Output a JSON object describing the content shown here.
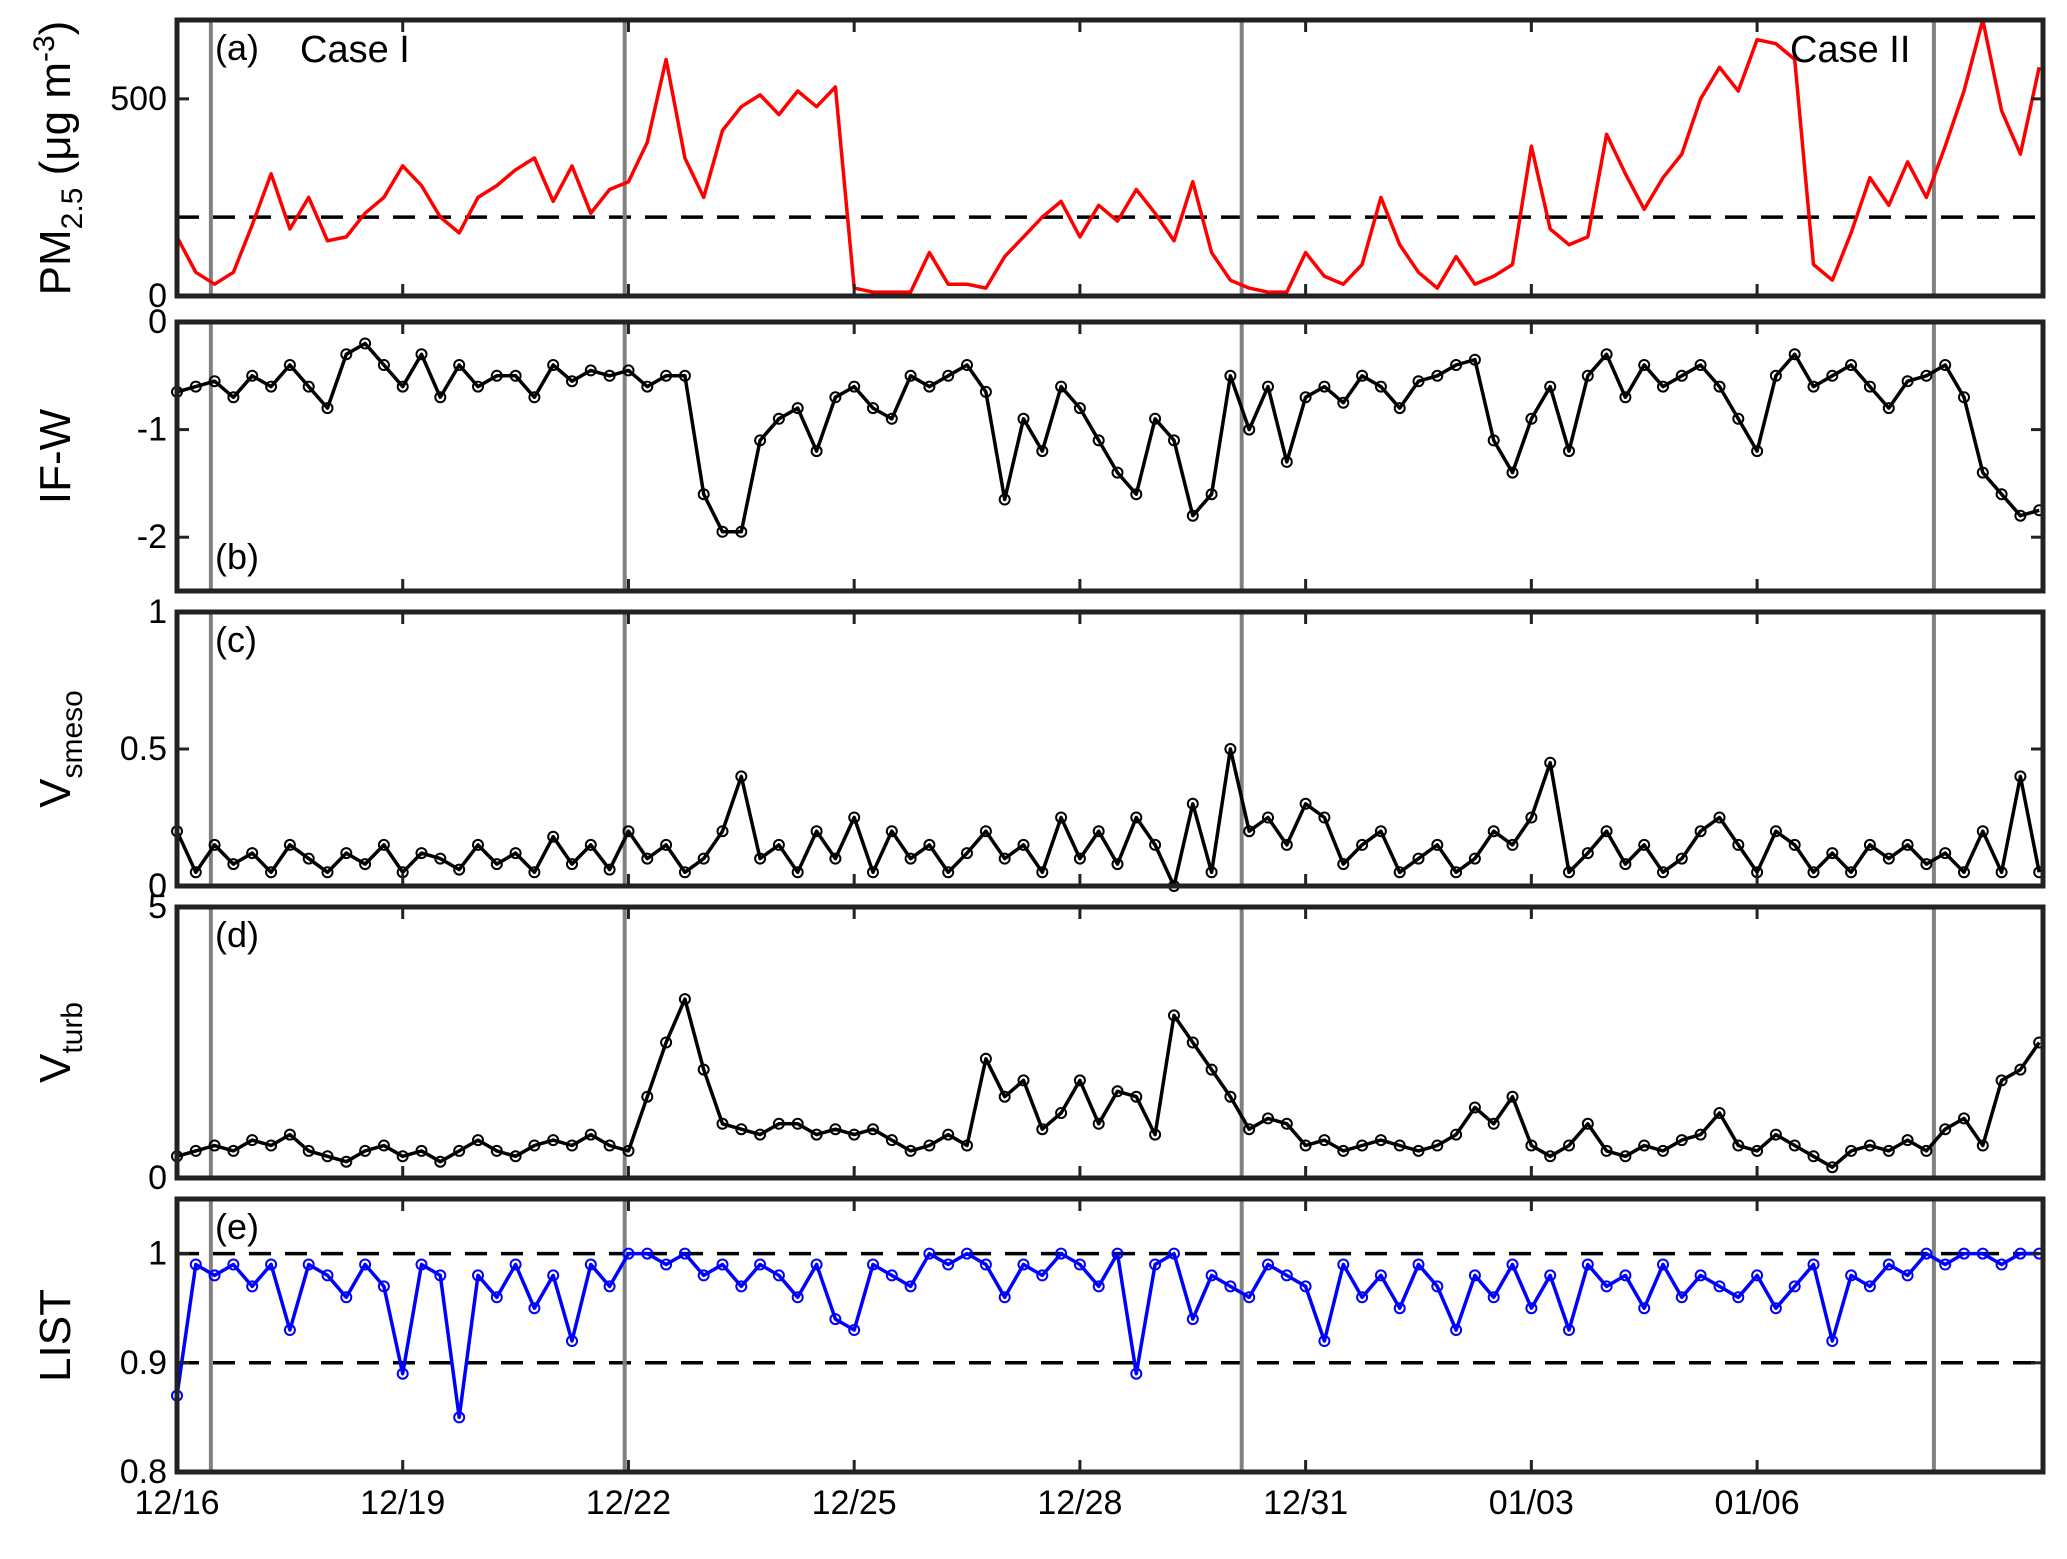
{
  "chart_data": [
    {
      "type": "line",
      "panel_label": "(a)",
      "case_labels": [
        "Case I",
        "Case II"
      ],
      "ylabel_main": "PM",
      "ylabel_sub": "2.5",
      "ylabel_unit": " (μg m",
      "ylabel_exp": "-3",
      "ylabel_close": ")",
      "ylim": [
        0,
        700
      ],
      "yticks": [
        0,
        500
      ],
      "line_color": "#ff0000",
      "reference_line": 200,
      "x": [
        0.0,
        0.25,
        0.5,
        0.75,
        1.0,
        1.25,
        1.5,
        1.75,
        2.0,
        2.25,
        2.5,
        2.75,
        3.0,
        3.25,
        3.5,
        3.75,
        4.0,
        4.25,
        4.5,
        4.75,
        5.0,
        5.25,
        5.5,
        5.75,
        6.0,
        6.25,
        6.5,
        6.75,
        7.0,
        7.25,
        7.5,
        7.75,
        8.0,
        8.25,
        8.5,
        8.75,
        9.0,
        9.25,
        9.5,
        9.75,
        10.0,
        10.25,
        10.5,
        10.75,
        11.0,
        11.25,
        11.5,
        11.75,
        12.0,
        12.25,
        12.5,
        12.75,
        13.0,
        13.25,
        13.5,
        13.75,
        14.0,
        14.25,
        14.5,
        14.75,
        15.0,
        15.25,
        15.5,
        15.75,
        16.0,
        16.25,
        16.5,
        16.75,
        17.0,
        17.25,
        17.5,
        17.75,
        18.0,
        18.25,
        18.5,
        18.75,
        19.0,
        19.25,
        19.5,
        19.75,
        20.0,
        20.25,
        20.5,
        20.75,
        21.0,
        21.25,
        21.5,
        21.75,
        22.0,
        22.25,
        22.5,
        22.75,
        23.0,
        23.25,
        23.5,
        23.75,
        24.0,
        24.25,
        24.5,
        24.75
      ],
      "values": [
        150,
        60,
        30,
        60,
        180,
        310,
        170,
        250,
        140,
        150,
        210,
        250,
        330,
        280,
        200,
        160,
        250,
        280,
        320,
        350,
        240,
        330,
        210,
        270,
        290,
        390,
        600,
        350,
        250,
        420,
        480,
        510,
        460,
        520,
        480,
        530,
        20,
        10,
        10,
        10,
        110,
        30,
        30,
        20,
        100,
        150,
        200,
        240,
        150,
        230,
        190,
        270,
        210,
        140,
        290,
        110,
        40,
        20,
        10,
        10,
        110,
        50,
        30,
        80,
        250,
        130,
        60,
        20,
        100,
        30,
        50,
        80,
        380,
        170,
        130,
        150,
        410,
        310,
        220,
        300,
        360,
        500,
        580,
        520,
        650,
        640,
        600,
        80,
        40,
        160,
        300,
        230,
        340,
        250,
        380,
        520,
        700,
        470,
        360,
        580
      ]
    },
    {
      "type": "scatter-line",
      "panel_label": "(b)",
      "ylabel_main": "IF-W",
      "ylim": [
        -2.5,
        0
      ],
      "yticks": [
        -2,
        -1,
        0
      ],
      "line_color": "#000000",
      "x": [
        0.0,
        0.25,
        0.5,
        0.75,
        1.0,
        1.25,
        1.5,
        1.75,
        2.0,
        2.25,
        2.5,
        2.75,
        3.0,
        3.25,
        3.5,
        3.75,
        4.0,
        4.25,
        4.5,
        4.75,
        5.0,
        5.25,
        5.5,
        5.75,
        6.0,
        6.25,
        6.5,
        6.75,
        7.0,
        7.25,
        7.5,
        7.75,
        8.0,
        8.25,
        8.5,
        8.75,
        9.0,
        9.25,
        9.5,
        9.75,
        10.0,
        10.25,
        10.5,
        10.75,
        11.0,
        11.25,
        11.5,
        11.75,
        12.0,
        12.25,
        12.5,
        12.75,
        13.0,
        13.25,
        13.5,
        13.75,
        14.0,
        14.25,
        14.5,
        14.75,
        15.0,
        15.25,
        15.5,
        15.75,
        16.0,
        16.25,
        16.5,
        16.75,
        17.0,
        17.25,
        17.5,
        17.75,
        18.0,
        18.25,
        18.5,
        18.75,
        19.0,
        19.25,
        19.5,
        19.75,
        20.0,
        20.25,
        20.5,
        20.75,
        21.0,
        21.25,
        21.5,
        21.75,
        22.0,
        22.25,
        22.5,
        22.75,
        23.0,
        23.25,
        23.5,
        23.75,
        24.0,
        24.25,
        24.5,
        24.75
      ],
      "values": [
        -0.65,
        -0.6,
        -0.55,
        -0.7,
        -0.5,
        -0.6,
        -0.4,
        -0.6,
        -0.8,
        -0.3,
        -0.2,
        -0.4,
        -0.6,
        -0.3,
        -0.7,
        -0.4,
        -0.6,
        -0.5,
        -0.5,
        -0.7,
        -0.4,
        -0.55,
        -0.45,
        -0.5,
        -0.45,
        -0.6,
        -0.5,
        -0.5,
        -1.6,
        -1.95,
        -1.95,
        -1.1,
        -0.9,
        -0.8,
        -1.2,
        -0.7,
        -0.6,
        -0.8,
        -0.9,
        -0.5,
        -0.6,
        -0.5,
        -0.4,
        -0.65,
        -1.65,
        -0.9,
        -1.2,
        -0.6,
        -0.8,
        -1.1,
        -1.4,
        -1.6,
        -0.9,
        -1.1,
        -1.8,
        -1.6,
        -0.5,
        -1.0,
        -0.6,
        -1.3,
        -0.7,
        -0.6,
        -0.75,
        -0.5,
        -0.6,
        -0.8,
        -0.55,
        -0.5,
        -0.4,
        -0.35,
        -1.1,
        -1.4,
        -0.9,
        -0.6,
        -1.2,
        -0.5,
        -0.3,
        -0.7,
        -0.4,
        -0.6,
        -0.5,
        -0.4,
        -0.6,
        -0.9,
        -1.2,
        -0.5,
        -0.3,
        -0.6,
        -0.5,
        -0.4,
        -0.6,
        -0.8,
        -0.55,
        -0.5,
        -0.4,
        -0.7,
        -1.4,
        -1.6,
        -1.8,
        -1.75
      ]
    },
    {
      "type": "scatter-line",
      "panel_label": "(c)",
      "ylabel_main": "V",
      "ylabel_sub": "smeso",
      "ylim": [
        0,
        1
      ],
      "yticks": [
        0,
        0.5,
        1
      ],
      "line_color": "#000000",
      "x": [
        0.0,
        0.25,
        0.5,
        0.75,
        1.0,
        1.25,
        1.5,
        1.75,
        2.0,
        2.25,
        2.5,
        2.75,
        3.0,
        3.25,
        3.5,
        3.75,
        4.0,
        4.25,
        4.5,
        4.75,
        5.0,
        5.25,
        5.5,
        5.75,
        6.0,
        6.25,
        6.5,
        6.75,
        7.0,
        7.25,
        7.5,
        7.75,
        8.0,
        8.25,
        8.5,
        8.75,
        9.0,
        9.25,
        9.5,
        9.75,
        10.0,
        10.25,
        10.5,
        10.75,
        11.0,
        11.25,
        11.5,
        11.75,
        12.0,
        12.25,
        12.5,
        12.75,
        13.0,
        13.25,
        13.5,
        13.75,
        14.0,
        14.25,
        14.5,
        14.75,
        15.0,
        15.25,
        15.5,
        15.75,
        16.0,
        16.25,
        16.5,
        16.75,
        17.0,
        17.25,
        17.5,
        17.75,
        18.0,
        18.25,
        18.5,
        18.75,
        19.0,
        19.25,
        19.5,
        19.75,
        20.0,
        20.25,
        20.5,
        20.75,
        21.0,
        21.25,
        21.5,
        21.75,
        22.0,
        22.25,
        22.5,
        22.75,
        23.0,
        23.25,
        23.5,
        23.75,
        24.0,
        24.25,
        24.5,
        24.75
      ],
      "values": [
        0.2,
        0.05,
        0.15,
        0.08,
        0.12,
        0.05,
        0.15,
        0.1,
        0.05,
        0.12,
        0.08,
        0.15,
        0.05,
        0.12,
        0.1,
        0.06,
        0.15,
        0.08,
        0.12,
        0.05,
        0.18,
        0.08,
        0.15,
        0.06,
        0.2,
        0.1,
        0.15,
        0.05,
        0.1,
        0.2,
        0.4,
        0.1,
        0.15,
        0.05,
        0.2,
        0.1,
        0.25,
        0.05,
        0.2,
        0.1,
        0.15,
        0.05,
        0.12,
        0.2,
        0.1,
        0.15,
        0.05,
        0.25,
        0.1,
        0.2,
        0.08,
        0.25,
        0.15,
        0.0,
        0.3,
        0.05,
        0.5,
        0.2,
        0.25,
        0.15,
        0.3,
        0.25,
        0.08,
        0.15,
        0.2,
        0.05,
        0.1,
        0.15,
        0.05,
        0.1,
        0.2,
        0.15,
        0.25,
        0.45,
        0.05,
        0.12,
        0.2,
        0.08,
        0.15,
        0.05,
        0.1,
        0.2,
        0.25,
        0.15,
        0.05,
        0.2,
        0.15,
        0.05,
        0.12,
        0.05,
        0.15,
        0.1,
        0.15,
        0.08,
        0.12,
        0.05,
        0.2,
        0.05,
        0.4,
        0.05
      ]
    },
    {
      "type": "scatter-line",
      "panel_label": "(d)",
      "ylabel_main": "V",
      "ylabel_sub": "turb",
      "ylim": [
        0,
        5
      ],
      "yticks": [
        0,
        5
      ],
      "line_color": "#000000",
      "x": [
        0.0,
        0.25,
        0.5,
        0.75,
        1.0,
        1.25,
        1.5,
        1.75,
        2.0,
        2.25,
        2.5,
        2.75,
        3.0,
        3.25,
        3.5,
        3.75,
        4.0,
        4.25,
        4.5,
        4.75,
        5.0,
        5.25,
        5.5,
        5.75,
        6.0,
        6.25,
        6.5,
        6.75,
        7.0,
        7.25,
        7.5,
        7.75,
        8.0,
        8.25,
        8.5,
        8.75,
        9.0,
        9.25,
        9.5,
        9.75,
        10.0,
        10.25,
        10.5,
        10.75,
        11.0,
        11.25,
        11.5,
        11.75,
        12.0,
        12.25,
        12.5,
        12.75,
        13.0,
        13.25,
        13.5,
        13.75,
        14.0,
        14.25,
        14.5,
        14.75,
        15.0,
        15.25,
        15.5,
        15.75,
        16.0,
        16.25,
        16.5,
        16.75,
        17.0,
        17.25,
        17.5,
        17.75,
        18.0,
        18.25,
        18.5,
        18.75,
        19.0,
        19.25,
        19.5,
        19.75,
        20.0,
        20.25,
        20.5,
        20.75,
        21.0,
        21.25,
        21.5,
        21.75,
        22.0,
        22.25,
        22.5,
        22.75,
        23.0,
        23.25,
        23.5,
        23.75,
        24.0,
        24.25,
        24.5,
        24.75
      ],
      "values": [
        0.4,
        0.5,
        0.6,
        0.5,
        0.7,
        0.6,
        0.8,
        0.5,
        0.4,
        0.3,
        0.5,
        0.6,
        0.4,
        0.5,
        0.3,
        0.5,
        0.7,
        0.5,
        0.4,
        0.6,
        0.7,
        0.6,
        0.8,
        0.6,
        0.5,
        1.5,
        2.5,
        3.3,
        2.0,
        1.0,
        0.9,
        0.8,
        1.0,
        1.0,
        0.8,
        0.9,
        0.8,
        0.9,
        0.7,
        0.5,
        0.6,
        0.8,
        0.6,
        2.2,
        1.5,
        1.8,
        0.9,
        1.2,
        1.8,
        1.0,
        1.6,
        1.5,
        0.8,
        3.0,
        2.5,
        2.0,
        1.5,
        0.9,
        1.1,
        1.0,
        0.6,
        0.7,
        0.5,
        0.6,
        0.7,
        0.6,
        0.5,
        0.6,
        0.8,
        1.3,
        1.0,
        1.5,
        0.6,
        0.4,
        0.6,
        1.0,
        0.5,
        0.4,
        0.6,
        0.5,
        0.7,
        0.8,
        1.2,
        0.6,
        0.5,
        0.8,
        0.6,
        0.4,
        0.2,
        0.5,
        0.6,
        0.5,
        0.7,
        0.5,
        0.9,
        1.1,
        0.6,
        1.8,
        2.0,
        2.5
      ]
    },
    {
      "type": "scatter-line",
      "panel_label": "(e)",
      "ylabel_main": "LIST",
      "ylim": [
        0.8,
        1.05
      ],
      "yticks": [
        0.8,
        0.9,
        1.0
      ],
      "ytick_labels": [
        "0.8",
        "0.9",
        "1"
      ],
      "line_color": "#0000ff",
      "reference_lines": [
        1.0,
        0.9
      ],
      "x": [
        0.0,
        0.25,
        0.5,
        0.75,
        1.0,
        1.25,
        1.5,
        1.75,
        2.0,
        2.25,
        2.5,
        2.75,
        3.0,
        3.25,
        3.5,
        3.75,
        4.0,
        4.25,
        4.5,
        4.75,
        5.0,
        5.25,
        5.5,
        5.75,
        6.0,
        6.25,
        6.5,
        6.75,
        7.0,
        7.25,
        7.5,
        7.75,
        8.0,
        8.25,
        8.5,
        8.75,
        9.0,
        9.25,
        9.5,
        9.75,
        10.0,
        10.25,
        10.5,
        10.75,
        11.0,
        11.25,
        11.5,
        11.75,
        12.0,
        12.25,
        12.5,
        12.75,
        13.0,
        13.25,
        13.5,
        13.75,
        14.0,
        14.25,
        14.5,
        14.75,
        15.0,
        15.25,
        15.5,
        15.75,
        16.0,
        16.25,
        16.5,
        16.75,
        17.0,
        17.25,
        17.5,
        17.75,
        18.0,
        18.25,
        18.5,
        18.75,
        19.0,
        19.25,
        19.5,
        19.75,
        20.0,
        20.25,
        20.5,
        20.75,
        21.0,
        21.25,
        21.5,
        21.75,
        22.0,
        22.25,
        22.5,
        22.75,
        23.0,
        23.25,
        23.5,
        23.75,
        24.0,
        24.25,
        24.5,
        24.75
      ],
      "values": [
        0.87,
        0.99,
        0.98,
        0.99,
        0.97,
        0.99,
        0.93,
        0.99,
        0.98,
        0.96,
        0.99,
        0.97,
        0.89,
        0.99,
        0.98,
        0.85,
        0.98,
        0.96,
        0.99,
        0.95,
        0.98,
        0.92,
        0.99,
        0.97,
        1.0,
        1.0,
        0.99,
        1.0,
        0.98,
        0.99,
        0.97,
        0.99,
        0.98,
        0.96,
        0.99,
        0.94,
        0.93,
        0.99,
        0.98,
        0.97,
        1.0,
        0.99,
        1.0,
        0.99,
        0.96,
        0.99,
        0.98,
        1.0,
        0.99,
        0.97,
        1.0,
        0.89,
        0.99,
        1.0,
        0.94,
        0.98,
        0.97,
        0.96,
        0.99,
        0.98,
        0.97,
        0.92,
        0.99,
        0.96,
        0.98,
        0.95,
        0.99,
        0.97,
        0.93,
        0.98,
        0.96,
        0.99,
        0.95,
        0.98,
        0.93,
        0.99,
        0.97,
        0.98,
        0.95,
        0.99,
        0.96,
        0.98,
        0.97,
        0.96,
        0.98,
        0.95,
        0.97,
        0.99,
        0.92,
        0.98,
        0.97,
        0.99,
        0.98,
        1.0,
        0.99,
        1.0,
        1.0,
        0.99,
        1.0,
        1.0
      ]
    }
  ],
  "x_axis": {
    "min": 0,
    "max": 24.8,
    "ticks": [
      0,
      3,
      6,
      9,
      12,
      15,
      18,
      21
    ],
    "tick_labels": [
      "12/16",
      "12/19",
      "12/22",
      "12/25",
      "12/28",
      "12/31",
      "01/03",
      "01/06"
    ]
  },
  "case_dividers": [
    0.45,
    5.95,
    14.15,
    23.35
  ],
  "colors": {
    "divider": "#808080",
    "frame": "#222222",
    "marker_black": "#000000",
    "marker_blue": "#0000ff"
  }
}
